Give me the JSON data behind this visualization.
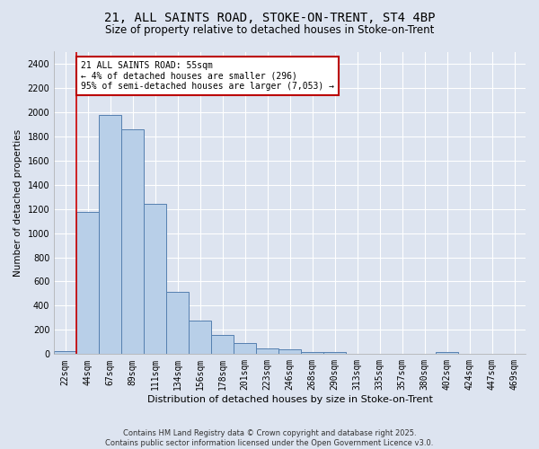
{
  "title1": "21, ALL SAINTS ROAD, STOKE-ON-TRENT, ST4 4BP",
  "title2": "Size of property relative to detached houses in Stoke-on-Trent",
  "xlabel": "Distribution of detached houses by size in Stoke-on-Trent",
  "ylabel": "Number of detached properties",
  "categories": [
    "22sqm",
    "44sqm",
    "67sqm",
    "89sqm",
    "111sqm",
    "134sqm",
    "156sqm",
    "178sqm",
    "201sqm",
    "223sqm",
    "246sqm",
    "268sqm",
    "290sqm",
    "313sqm",
    "335sqm",
    "357sqm",
    "380sqm",
    "402sqm",
    "424sqm",
    "447sqm",
    "469sqm"
  ],
  "values": [
    25,
    1175,
    1975,
    1860,
    1240,
    515,
    275,
    155,
    90,
    48,
    40,
    20,
    15,
    5,
    0,
    0,
    0,
    15,
    0,
    0,
    5
  ],
  "bar_color": "#b8cfe8",
  "bar_edge_color": "#5580b0",
  "bg_color": "#dde4f0",
  "grid_color": "#ffffff",
  "annotation_text": "21 ALL SAINTS ROAD: 55sqm\n← 4% of detached houses are smaller (296)\n95% of semi-detached houses are larger (7,053) →",
  "annotation_box_color": "#ffffff",
  "annotation_box_edge_color": "#bb0000",
  "vline_color": "#cc0000",
  "ylim": [
    0,
    2500
  ],
  "yticks": [
    0,
    200,
    400,
    600,
    800,
    1000,
    1200,
    1400,
    1600,
    1800,
    2000,
    2200,
    2400
  ],
  "footer": "Contains HM Land Registry data © Crown copyright and database right 2025.\nContains public sector information licensed under the Open Government Licence v3.0.",
  "title1_fontsize": 10,
  "title2_fontsize": 8.5,
  "xlabel_fontsize": 8,
  "ylabel_fontsize": 7.5,
  "tick_fontsize": 7,
  "footer_fontsize": 6,
  "annotation_fontsize": 7
}
